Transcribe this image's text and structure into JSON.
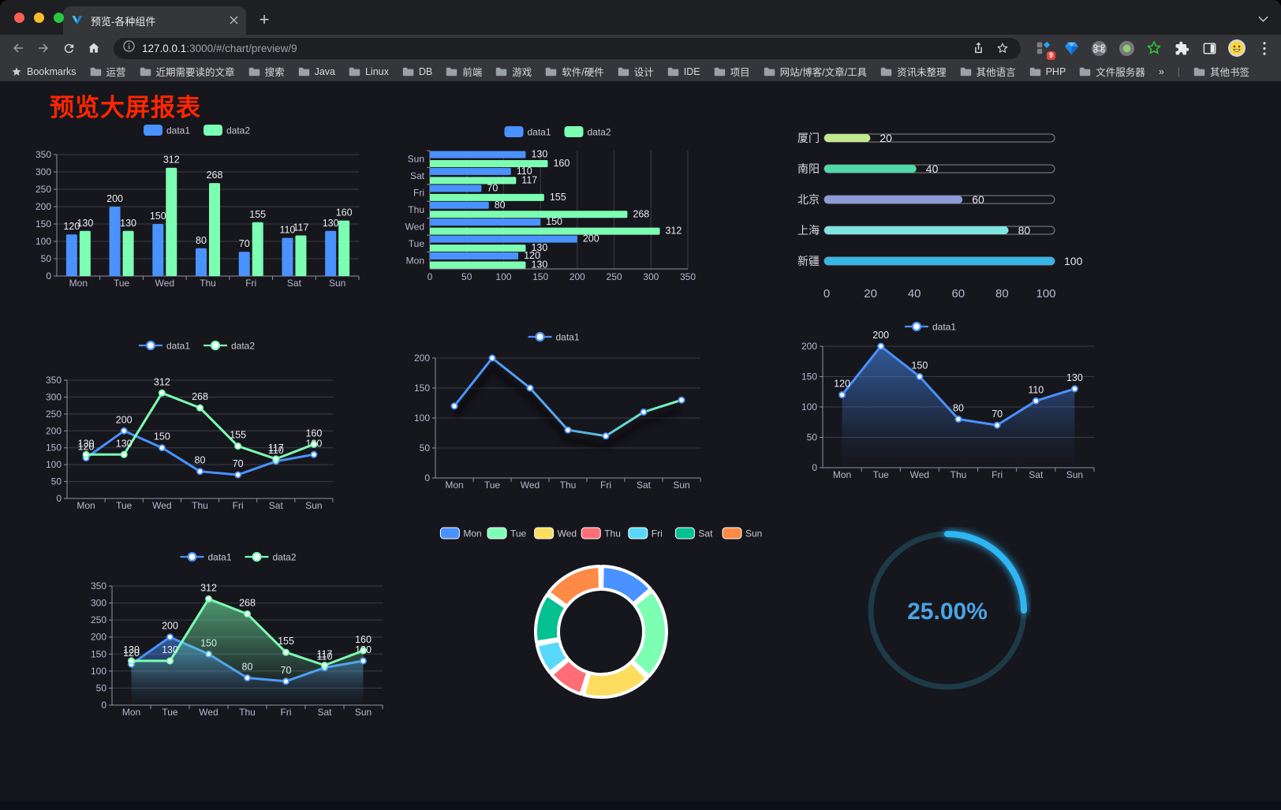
{
  "browser": {
    "tab_title": "预览-各种组件",
    "url_host": "127.0.0.1",
    "url_rest": ":3000/#/chart/preview/9",
    "bookmarks_label": "Bookmarks",
    "bookmark_folders": [
      "运营",
      "近期需要读的文章",
      "搜索",
      "Java",
      "Linux",
      "DB",
      "前端",
      "游戏",
      "软件/硬件",
      "设计",
      "IDE",
      "项目",
      "网站/博客/文章/工具",
      "资讯未整理",
      "其他语言",
      "PHP",
      "文件服务器"
    ],
    "bookmarks_overflow": "»",
    "other_bookmarks": "其他书签",
    "extension_badge": "9",
    "traffic_colors": {
      "close": "#ff5f57",
      "minimize": "#febc2e",
      "maximize": "#28c840"
    }
  },
  "page": {
    "title": "预览大屏报表",
    "title_color": "#ff2600",
    "background": "#16161d"
  },
  "chart_data": [
    {
      "id": "bar-vertical",
      "type": "bar",
      "categories": [
        "Mon",
        "Tue",
        "Wed",
        "Thu",
        "Fri",
        "Sat",
        "Sun"
      ],
      "series": [
        {
          "name": "data1",
          "color": "#4992ff",
          "values": [
            120,
            200,
            150,
            80,
            70,
            110,
            130
          ]
        },
        {
          "name": "data2",
          "color": "#7cffb2",
          "values": [
            130,
            130,
            312,
            268,
            155,
            117,
            160
          ]
        }
      ],
      "ylim": [
        0,
        350
      ],
      "ystep": 50,
      "legend_position": "top",
      "value_labels": true,
      "grid": true
    },
    {
      "id": "bar-horizontal",
      "type": "bar-horizontal",
      "categories": [
        "Mon",
        "Tue",
        "Wed",
        "Thu",
        "Fri",
        "Sat",
        "Sun"
      ],
      "series": [
        {
          "name": "data1",
          "color": "#4992ff",
          "values": [
            120,
            200,
            150,
            80,
            70,
            110,
            130
          ]
        },
        {
          "name": "data2",
          "color": "#7cffb2",
          "values": [
            130,
            130,
            312,
            268,
            155,
            117,
            160
          ]
        }
      ],
      "xlim": [
        0,
        350
      ],
      "xstep": 50,
      "legend_position": "top",
      "value_labels": true,
      "grid": true
    },
    {
      "id": "progress-bars",
      "type": "progress",
      "rows": [
        {
          "label": "厦门",
          "value": 20,
          "color": "#c3e88d"
        },
        {
          "label": "南阳",
          "value": 40,
          "color": "#4ed9a8"
        },
        {
          "label": "北京",
          "value": 60,
          "color": "#8d9bd8"
        },
        {
          "label": "上海",
          "value": 80,
          "color": "#7fe3e0"
        },
        {
          "label": "新疆",
          "value": 100,
          "color": "#35b6e6"
        }
      ],
      "max": 100,
      "ticks": [
        0,
        20,
        40,
        60,
        80,
        100
      ]
    },
    {
      "id": "line-double",
      "type": "line",
      "categories": [
        "Mon",
        "Tue",
        "Wed",
        "Thu",
        "Fri",
        "Sat",
        "Sun"
      ],
      "series": [
        {
          "name": "data1",
          "color": "#4992ff",
          "values": [
            120,
            200,
            150,
            80,
            70,
            110,
            130
          ],
          "labels": true
        },
        {
          "name": "data2",
          "color": "#7cffb2",
          "values": [
            130,
            130,
            312,
            268,
            155,
            117,
            160
          ],
          "labels": true
        }
      ],
      "ylim": [
        0,
        350
      ],
      "ystep": 50,
      "legend_position": "top",
      "grid": true
    },
    {
      "id": "line-gradient",
      "type": "line",
      "categories": [
        "Mon",
        "Tue",
        "Wed",
        "Thu",
        "Fri",
        "Sat",
        "Sun"
      ],
      "series": [
        {
          "name": "data1",
          "gradient": [
            "#4992ff",
            "#58b0e8",
            "#7cffb2"
          ],
          "color": "#4992ff",
          "values": [
            120,
            200,
            150,
            80,
            70,
            110,
            130
          ],
          "labels": false,
          "shadow": true
        }
      ],
      "ylim": [
        0,
        200
      ],
      "ystep": 50,
      "legend_position": "top",
      "grid": true
    },
    {
      "id": "area-single",
      "type": "line",
      "categories": [
        "Mon",
        "Tue",
        "Wed",
        "Thu",
        "Fri",
        "Sat",
        "Sun"
      ],
      "series": [
        {
          "name": "data1",
          "color": "#4992ff",
          "values": [
            120,
            200,
            150,
            80,
            70,
            110,
            130
          ],
          "labels": true,
          "area": true
        }
      ],
      "ylim": [
        0,
        200
      ],
      "ystep": 50,
      "legend_position": "top",
      "grid": true
    },
    {
      "id": "area-double",
      "type": "line",
      "categories": [
        "Mon",
        "Tue",
        "Wed",
        "Thu",
        "Fri",
        "Sat",
        "Sun"
      ],
      "series": [
        {
          "name": "data1",
          "color": "#4992ff",
          "values": [
            120,
            200,
            150,
            80,
            70,
            110,
            130
          ],
          "labels": true,
          "area": true
        },
        {
          "name": "data2",
          "color": "#7cffb2",
          "values": [
            130,
            130,
            312,
            268,
            155,
            117,
            160
          ],
          "labels": true,
          "area": true
        }
      ],
      "ylim": [
        0,
        350
      ],
      "ystep": 50,
      "legend_position": "top",
      "grid": true
    },
    {
      "id": "pie-donut",
      "type": "pie",
      "categories": [
        "Mon",
        "Tue",
        "Wed",
        "Thu",
        "Fri",
        "Sat",
        "Sun"
      ],
      "values": [
        120,
        200,
        150,
        80,
        70,
        110,
        130
      ],
      "colors": [
        "#4992ff",
        "#7cffb2",
        "#fddd60",
        "#ff6e76",
        "#58d9f9",
        "#05c091",
        "#ff8a45"
      ],
      "legend_position": "top",
      "donut": true,
      "border_color": "#ffffff"
    },
    {
      "id": "gauge-ring",
      "type": "gauge",
      "value": 25,
      "display": "25.00%",
      "color": "#2db5f2",
      "track_color": "#1c3b47",
      "text_color": "#4ba4e4"
    }
  ]
}
